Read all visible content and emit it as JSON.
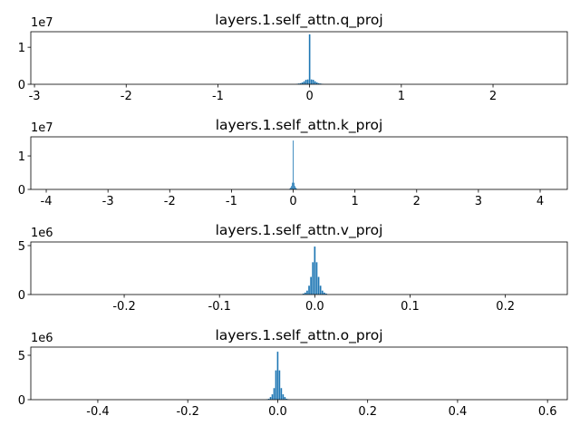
{
  "chart_data": [
    {
      "type": "histogram",
      "title": "layers.1.self_attn.q_proj",
      "offset_label": "1e7",
      "color": "#1f77b4",
      "bins": [
        -0.15,
        -0.13,
        -0.11,
        -0.09,
        -0.07,
        -0.05,
        -0.03,
        -0.01,
        0.01,
        0.03,
        0.05,
        0.07,
        0.09,
        0.11,
        0.13,
        0.15
      ],
      "values": [
        0.01,
        0.02,
        0.03,
        0.05,
        0.08,
        0.12,
        0.13,
        1.35,
        0.13,
        0.12,
        0.08,
        0.05,
        0.03,
        0.02,
        0.01
      ],
      "xlim": [
        -3.04,
        2.81
      ],
      "ylim": [
        0,
        1.42
      ],
      "xticks": [
        -3,
        -2,
        -1,
        0,
        1,
        2
      ],
      "yticks": [
        0,
        1
      ]
    },
    {
      "type": "histogram",
      "title": "layers.1.self_attn.k_proj",
      "offset_label": "1e7",
      "color": "#1f77b4",
      "bins": [
        -0.0675,
        -0.0525,
        -0.0375,
        -0.0225,
        -0.0075,
        0.0075,
        0.0225,
        0.0375,
        0.0525,
        0.0675
      ],
      "values": [
        0.02,
        0.05,
        0.1,
        0.2,
        1.46,
        0.2,
        0.1,
        0.05,
        0.02
      ],
      "xlim": [
        -4.25,
        4.44
      ],
      "ylim": [
        0,
        1.57
      ],
      "xticks": [
        -4,
        -3,
        -2,
        -1,
        0,
        1,
        2,
        3,
        4
      ],
      "yticks": [
        0,
        1
      ]
    },
    {
      "type": "histogram",
      "title": "layers.1.self_attn.v_proj",
      "offset_label": "1e6",
      "color": "#1f77b4",
      "bins": [
        -0.013,
        -0.011,
        -0.009,
        -0.007,
        -0.005,
        -0.003,
        -0.001,
        0.001,
        0.003,
        0.005,
        0.007,
        0.009,
        0.011,
        0.013
      ],
      "values": [
        0.1,
        0.2,
        0.4,
        0.9,
        1.8,
        3.3,
        4.9,
        3.3,
        1.8,
        0.9,
        0.4,
        0.2,
        0.1
      ],
      "xlim": [
        -0.298,
        0.265
      ],
      "ylim": [
        0,
        5.37
      ],
      "xticks": [
        -0.2,
        -0.1,
        {
          "value": 0,
          "label": "0.0"
        },
        0.1,
        0.2
      ],
      "yticks": [
        0,
        5
      ]
    },
    {
      "type": "histogram",
      "title": "layers.1.self_attn.o_proj",
      "offset_label": "1e6",
      "color": "#1f77b4",
      "bins": [
        -0.026,
        -0.022,
        -0.018,
        -0.014,
        -0.01,
        -0.006,
        -0.002,
        0.002,
        0.006,
        0.01,
        0.014,
        0.018,
        0.022,
        0.026
      ],
      "values": [
        0.05,
        0.1,
        0.3,
        0.6,
        1.3,
        3.3,
        5.4,
        3.3,
        1.3,
        0.6,
        0.3,
        0.1,
        0.05
      ],
      "xlim": [
        -0.549,
        0.644
      ],
      "ylim": [
        0,
        5.92
      ],
      "xticks": [
        -0.4,
        -0.2,
        {
          "value": 0,
          "label": "0.0"
        },
        0.2,
        0.4,
        0.6
      ],
      "yticks": [
        0,
        5
      ]
    }
  ]
}
